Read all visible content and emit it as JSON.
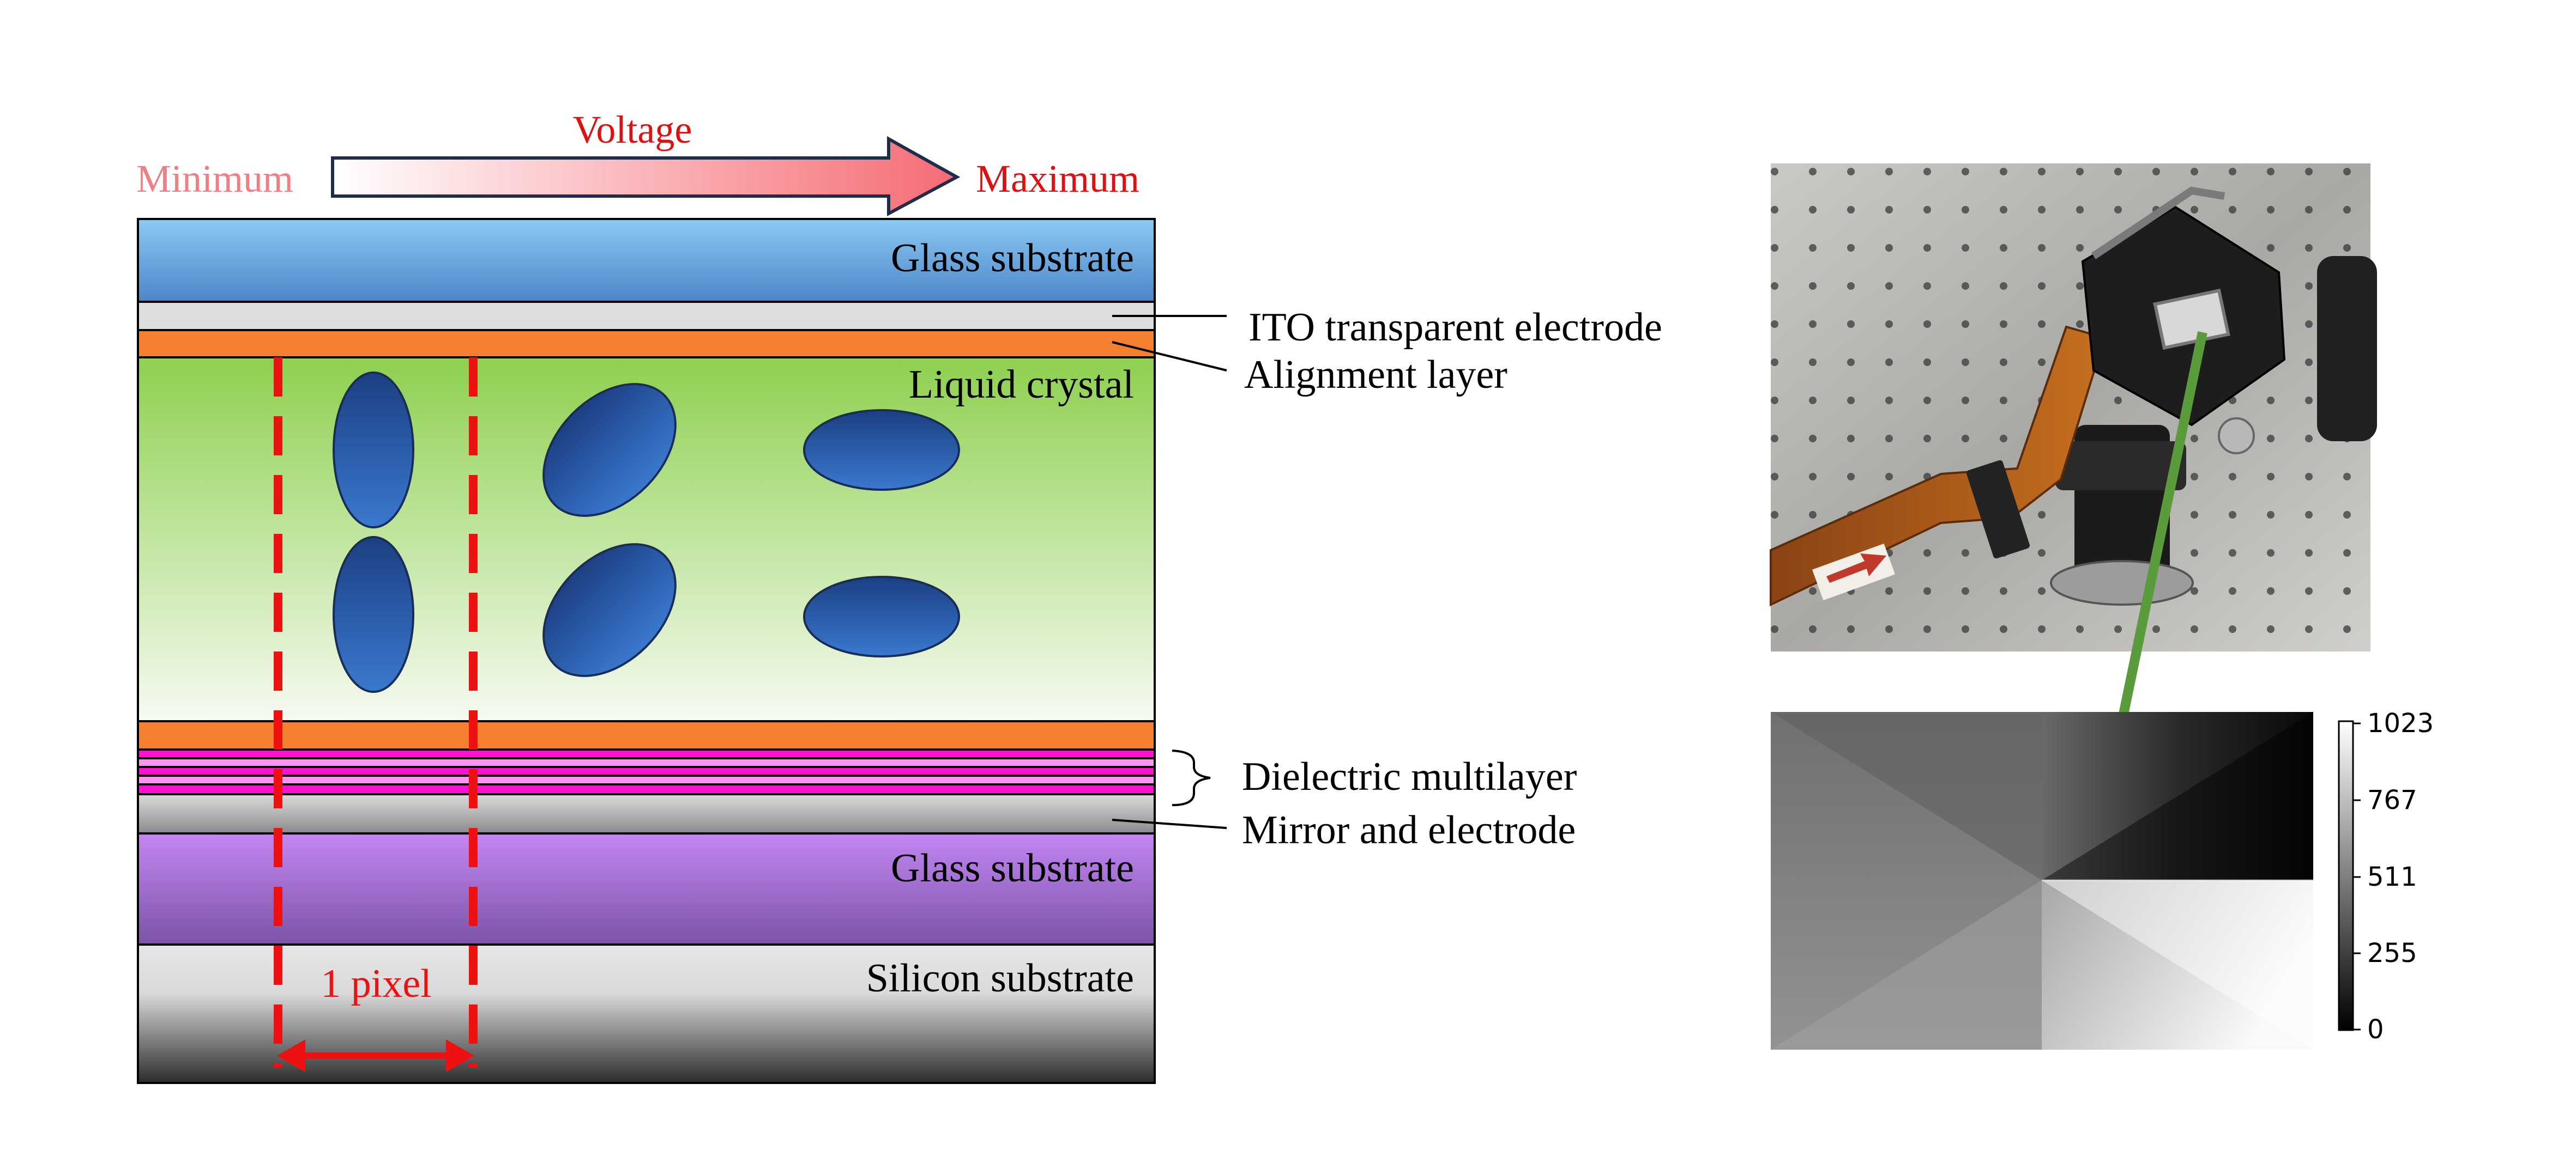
{
  "voltage": {
    "title": "Voltage",
    "min_label": "Minimum",
    "max_label": "Maximum"
  },
  "layers": {
    "glass_top": "Glass substrate",
    "liquid_crystal": "Liquid crystal",
    "glass_bottom": "Glass substrate",
    "silicon": "Silicon substrate"
  },
  "callouts": {
    "ito": "ITO transparent electrode",
    "alignment": "Alignment layer",
    "dielectric": "Dielectric multilayer",
    "mirror": "Mirror and electrode"
  },
  "pixel": {
    "label": "1 pixel"
  },
  "colorbar": {
    "ticks": [
      "1023",
      "767",
      "511",
      "255",
      "0"
    ]
  },
  "colors": {
    "red": "#dd1111",
    "pink_min": "#f07f85",
    "orange": "#f47f2e",
    "magenta": "#ff0fd0",
    "green_pointer": "#5a9b3c",
    "ellipse": "#2d5eb0"
  }
}
